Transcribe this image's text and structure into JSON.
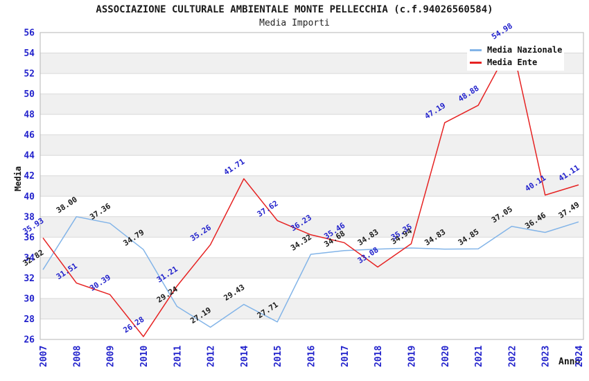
{
  "title": "ASSOCIAZIONE CULTURALE AMBIENTALE MONTE PELLECCHIA (c.f.94026560584)",
  "subtitle": "Media Importi",
  "chart_data": {
    "type": "line",
    "title": "ASSOCIAZIONE CULTURALE AMBIENTALE MONTE PELLECCHIA (c.f.94026560584)",
    "subtitle": "Media Importi",
    "xlabel": "Anno",
    "ylabel": "Media",
    "categories": [
      "2007",
      "2008",
      "2009",
      "2010",
      "2011",
      "2012",
      "2014",
      "2015",
      "2016",
      "2017",
      "2018",
      "2019",
      "2020",
      "2021",
      "2022",
      "2023",
      "2024"
    ],
    "series": [
      {
        "name": "Media Nazionale",
        "color": "#82b4e8",
        "label_color": "#1a1a1a",
        "values": [
          32.82,
          38.0,
          37.36,
          34.79,
          29.24,
          27.19,
          29.43,
          27.71,
          34.32,
          34.68,
          34.83,
          34.94,
          34.83,
          34.85,
          37.05,
          36.46,
          37.49
        ]
      },
      {
        "name": "Media Ente",
        "color": "#e62222",
        "label_color": "#2222cc",
        "values": [
          35.93,
          31.51,
          30.39,
          26.28,
          31.21,
          35.26,
          41.71,
          37.62,
          36.23,
          35.46,
          33.08,
          35.35,
          47.19,
          48.88,
          54.98,
          40.11,
          41.11
        ]
      }
    ],
    "ylim": [
      26,
      56
    ],
    "yticks": [
      26,
      28,
      30,
      32,
      34,
      36,
      38,
      40,
      42,
      44,
      46,
      48,
      50,
      52,
      54,
      56
    ],
    "grid": "alternating-horizontal-bands",
    "legend_position": "top-right",
    "colors": {
      "tick_label": "#2222cc",
      "axis_title": "#111111",
      "band_gray": "#f0f0f0",
      "gridline": "#d9d9d9",
      "plot_border": "#b5b5b5"
    }
  }
}
